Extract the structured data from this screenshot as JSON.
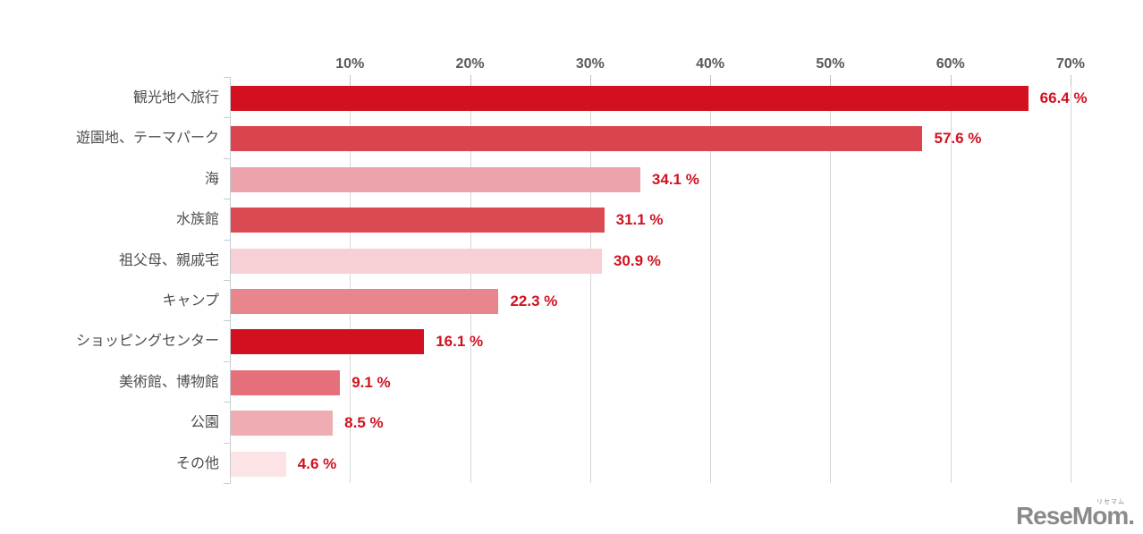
{
  "chart_data": {
    "type": "bar",
    "orientation": "horizontal",
    "title": "",
    "categories": [
      "観光地へ旅行",
      "遊園地、テーマパーク",
      "海",
      "水族館",
      "祖父母、親戚宅",
      "キャンプ",
      "ショッピングセンター",
      "美術館、博物館",
      "公園",
      "その他"
    ],
    "values": [
      66.4,
      57.6,
      34.1,
      31.1,
      30.9,
      22.3,
      16.1,
      9.1,
      8.5,
      4.6
    ],
    "value_labels": [
      "66.4 %",
      "57.6 %",
      "34.1 %",
      "31.1 %",
      "30.9 %",
      "22.3 %",
      "16.1 %",
      "9.1 %",
      "8.5 %",
      "4.6 %"
    ],
    "bar_colors": [
      "#d2101f",
      "#d9444e",
      "#eca3ab",
      "#da4a53",
      "#f6d0d4",
      "#e8858d",
      "#d2101f",
      "#e5707b",
      "#efadb3",
      "#fbe3e6"
    ],
    "xaxis": {
      "position": "top",
      "min": 0,
      "max": 70,
      "tick_step": 10,
      "tick_labels": [
        "10%",
        "20%",
        "30%",
        "40%",
        "50%",
        "60%",
        "70%"
      ],
      "tick_label_color": "#58595b",
      "grid": true,
      "gridline_color": "#d6d6d6"
    },
    "value_label_color": "#d01220",
    "category_label_color": "#4d4d4d",
    "axis_line_color": "#c3ccd3",
    "legend": null
  },
  "watermark": {
    "text": "ReseMom.",
    "ruby": "リセマム",
    "color": "#8a8a8a"
  }
}
